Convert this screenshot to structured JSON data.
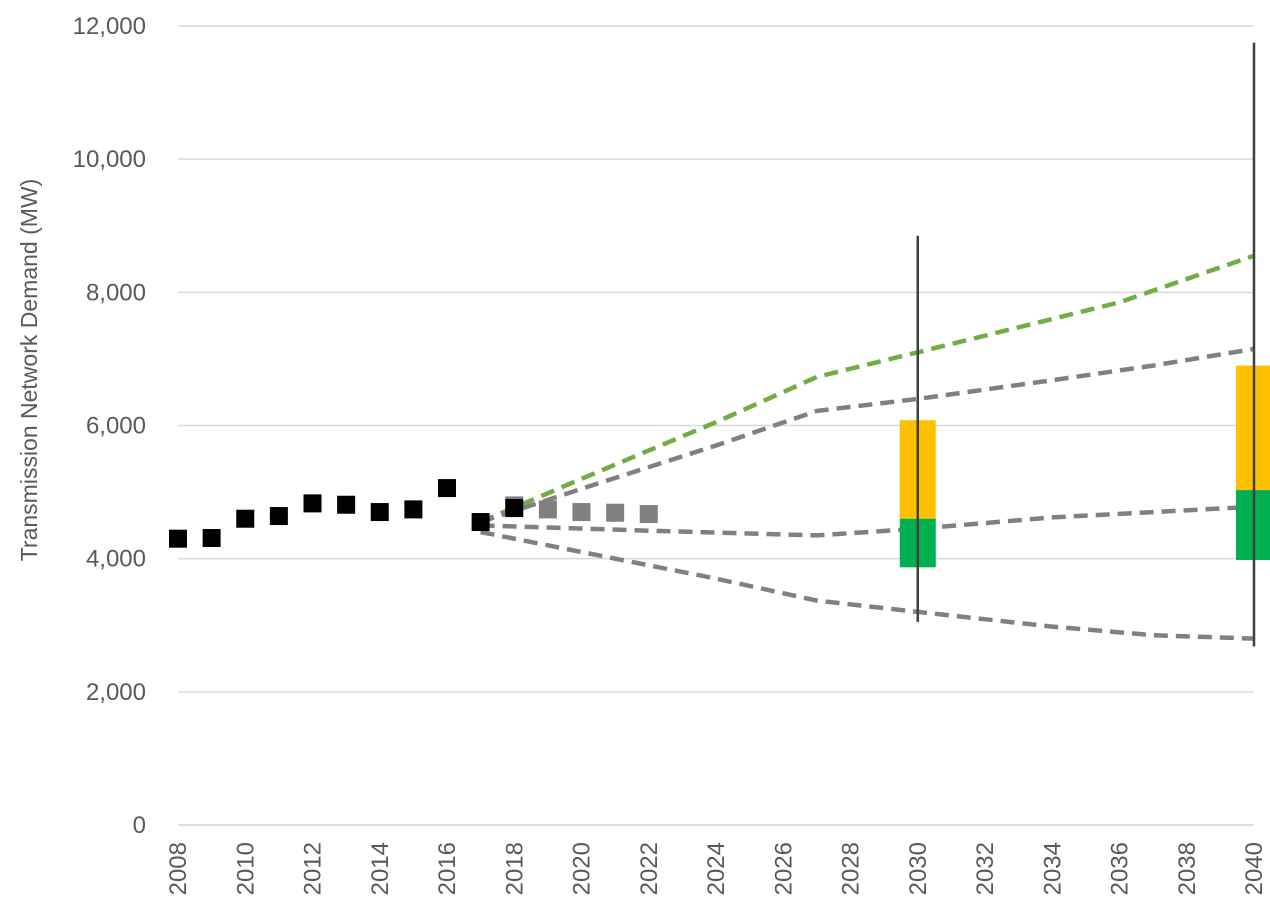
{
  "chart_data": {
    "type": "scatter",
    "title": "",
    "xlabel": "",
    "ylabel": "Transmission Network Demand (MW)",
    "xlim": [
      2008,
      2040
    ],
    "ylim": [
      0,
      12000
    ],
    "x_ticks": [
      "2008",
      "2010",
      "2012",
      "2014",
      "2016",
      "2018",
      "2020",
      "2022",
      "2024",
      "2026",
      "2028",
      "2030",
      "2032",
      "2034",
      "2036",
      "2038",
      "2040"
    ],
    "y_ticks": [
      "0",
      "2,000",
      "4,000",
      "6,000",
      "8,000",
      "10,000",
      "12,000"
    ],
    "grid": "horizontal",
    "legend": "none",
    "historical": {
      "color": "#000000",
      "points": [
        {
          "x": 2008,
          "y": 4300
        },
        {
          "x": 2009,
          "y": 4310
        },
        {
          "x": 2010,
          "y": 4600
        },
        {
          "x": 2011,
          "y": 4640
        },
        {
          "x": 2012,
          "y": 4830
        },
        {
          "x": 2013,
          "y": 4810
        },
        {
          "x": 2014,
          "y": 4700
        },
        {
          "x": 2015,
          "y": 4740
        },
        {
          "x": 2016,
          "y": 5060
        },
        {
          "x": 2017,
          "y": 4550
        },
        {
          "x": 2018,
          "y": 4760
        }
      ]
    },
    "short_forecast": {
      "color": "#808080",
      "points": [
        {
          "x": 2018,
          "y": 4800
        },
        {
          "x": 2019,
          "y": 4740
        },
        {
          "x": 2020,
          "y": 4700
        },
        {
          "x": 2021,
          "y": 4690
        },
        {
          "x": 2022,
          "y": 4670
        }
      ]
    },
    "scenarios": [
      {
        "color": "#70AD47",
        "points": [
          [
            2017,
            4550
          ],
          [
            2020,
            5200
          ],
          [
            2024,
            6050
          ],
          [
            2027,
            6730
          ],
          [
            2030,
            7100
          ],
          [
            2034,
            7600
          ],
          [
            2036,
            7850
          ],
          [
            2040,
            8550
          ]
        ]
      },
      {
        "color": "#808080",
        "points": [
          [
            2017,
            4550
          ],
          [
            2020,
            5050
          ],
          [
            2024,
            5700
          ],
          [
            2027,
            6220
          ],
          [
            2030,
            6400
          ],
          [
            2034,
            6680
          ],
          [
            2037,
            6900
          ],
          [
            2040,
            7150
          ]
        ]
      },
      {
        "color": "#808080",
        "points": [
          [
            2017,
            4500
          ],
          [
            2022,
            4420
          ],
          [
            2027,
            4350
          ],
          [
            2030,
            4450
          ],
          [
            2034,
            4620
          ],
          [
            2037,
            4700
          ],
          [
            2040,
            4780
          ]
        ]
      },
      {
        "color": "#808080",
        "points": [
          [
            2017,
            4400
          ],
          [
            2020,
            4100
          ],
          [
            2024,
            3700
          ],
          [
            2027,
            3370
          ],
          [
            2030,
            3200
          ],
          [
            2034,
            2980
          ],
          [
            2037,
            2850
          ],
          [
            2040,
            2800
          ]
        ]
      }
    ],
    "ranges": [
      {
        "x": 2030,
        "whisker": [
          3050,
          8850
        ],
        "yellow": [
          4600,
          6080
        ],
        "green": [
          3870,
          4600
        ]
      },
      {
        "x": 2040,
        "whisker": [
          2680,
          11750
        ],
        "yellow": [
          5030,
          6900
        ],
        "green": [
          3980,
          5030
        ]
      }
    ],
    "colors": {
      "yellow": "#FFC000",
      "green": "#00B050",
      "whisker": "#404040",
      "grid": "#D9D9D9",
      "axis": "#595959"
    }
  }
}
